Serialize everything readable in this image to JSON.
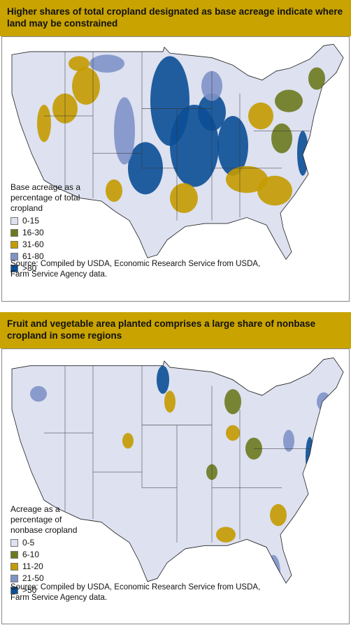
{
  "panels": [
    {
      "title": "Higher shares of total cropland designated as base acreage indicate where land may be constrained",
      "legend": {
        "title": "Base acreage as a percentage of total cropland",
        "items": [
          {
            "label": "0-15",
            "color": "#dde1f0"
          },
          {
            "label": "16-30",
            "color": "#6b7a1e"
          },
          {
            "label": "31-60",
            "color": "#c49b00"
          },
          {
            "label": "61-80",
            "color": "#7f93c8"
          },
          {
            "label": ">80",
            "color": "#0b4f96"
          }
        ]
      },
      "source": "Source: Compiled by USDA, Economic Research Service from USDA, Farm Service Agency data."
    },
    {
      "title": "Fruit and vegetable area planted comprises a large share of nonbase cropland in some regions",
      "legend": {
        "title": "Acreage as a percentage of nonbase cropland",
        "items": [
          {
            "label": "0-5",
            "color": "#dde1f0"
          },
          {
            "label": "6-10",
            "color": "#6b7a1e"
          },
          {
            "label": "11-20",
            "color": "#c49b00"
          },
          {
            "label": "21-50",
            "color": "#7f93c8"
          },
          {
            "label": ">50",
            "color": "#0b4f96"
          }
        ]
      },
      "source": "Source: Compiled by USDA, Economic Research Service from USDA, Farm Service Agency data."
    }
  ]
}
